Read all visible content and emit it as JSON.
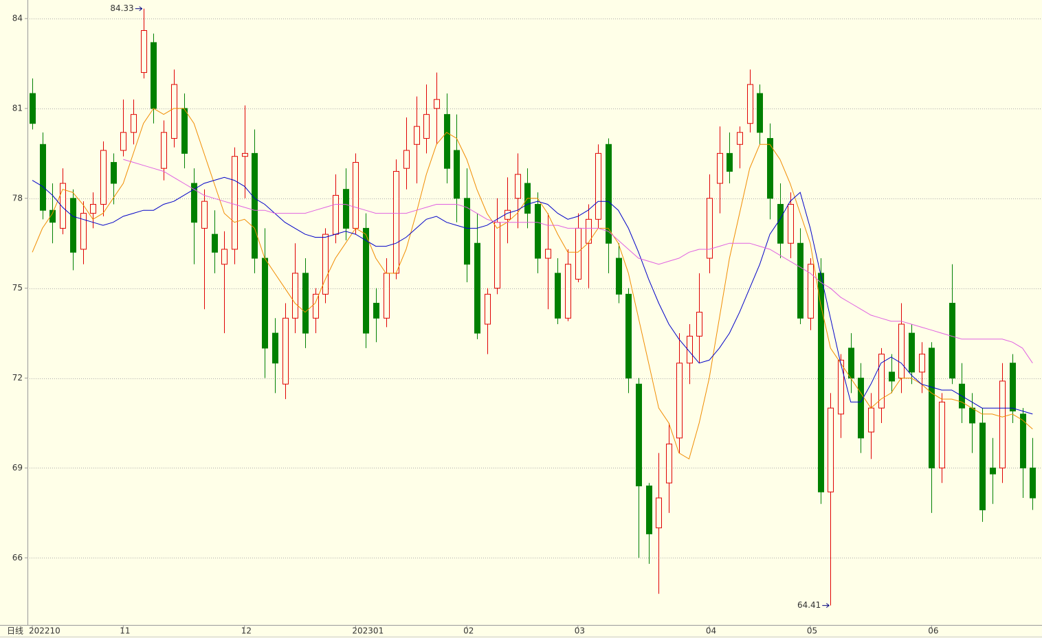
{
  "chart_data": {
    "type": "candlestick",
    "period_label": "日线",
    "categories": [
      "202210",
      null,
      null,
      null,
      null,
      null,
      null,
      null,
      null,
      "11",
      null,
      null,
      null,
      null,
      null,
      null,
      null,
      null,
      null,
      null,
      null,
      "12",
      null,
      null,
      null,
      null,
      null,
      null,
      null,
      null,
      null,
      null,
      "202301",
      null,
      null,
      null,
      null,
      null,
      null,
      null,
      null,
      null,
      null,
      "02",
      null,
      null,
      null,
      null,
      null,
      null,
      null,
      null,
      null,
      null,
      "03",
      null,
      null,
      null,
      null,
      null,
      null,
      null,
      null,
      null,
      null,
      null,
      null,
      "04",
      null,
      null,
      null,
      null,
      null,
      null,
      null,
      null,
      null,
      "05",
      null,
      null,
      null,
      null,
      null,
      null,
      null,
      null,
      null,
      null,
      null,
      "06",
      null,
      null,
      null,
      null,
      null,
      null,
      null,
      null,
      null,
      null
    ],
    "ohlc": [
      [
        81.5,
        82,
        80.3,
        80.5
      ],
      [
        79.8,
        80.2,
        77.3,
        77.6
      ],
      [
        77.6,
        78.5,
        76.5,
        77.2
      ],
      [
        77,
        79,
        76.8,
        78.5
      ],
      [
        78,
        78.3,
        75.6,
        76.2
      ],
      [
        76.3,
        77.9,
        75.8,
        77.5
      ],
      [
        77.5,
        78.2,
        77,
        77.8
      ],
      [
        77.8,
        79.9,
        77.4,
        79.6
      ],
      [
        79.2,
        79.5,
        77.8,
        78.5
      ],
      [
        79.6,
        81.3,
        79.4,
        80.2
      ],
      [
        80.2,
        81.3,
        79.8,
        80.8
      ],
      [
        82.2,
        84.33,
        82,
        83.6
      ],
      [
        83.2,
        83.5,
        80.5,
        81
      ],
      [
        79,
        80.6,
        78.6,
        80.2
      ],
      [
        80,
        82.3,
        79.7,
        81.8
      ],
      [
        81,
        81.5,
        79,
        79.5
      ],
      [
        78.5,
        79,
        75.8,
        77.2
      ],
      [
        77,
        78.3,
        74.3,
        77.9
      ],
      [
        76.8,
        77.6,
        75.5,
        76.2
      ],
      [
        75.8,
        76.9,
        73.5,
        76.3
      ],
      [
        76.3,
        79.7,
        75.8,
        79.4
      ],
      [
        79.4,
        81.1,
        78,
        79.5
      ],
      [
        79.5,
        80.3,
        75.5,
        76
      ],
      [
        76,
        77,
        72,
        73
      ],
      [
        73.5,
        74,
        71.5,
        72.5
      ],
      [
        71.8,
        74.5,
        71.3,
        74
      ],
      [
        74,
        76.5,
        73.5,
        75.5
      ],
      [
        75.5,
        76,
        73,
        73.5
      ],
      [
        74,
        75,
        73.5,
        74.8
      ],
      [
        74.8,
        77,
        74.5,
        76.8
      ],
      [
        76.8,
        78.8,
        76.5,
        78.1
      ],
      [
        78.3,
        79,
        76.6,
        77
      ],
      [
        77,
        79.5,
        76.8,
        79.2
      ],
      [
        77,
        77.5,
        73,
        73.5
      ],
      [
        74.5,
        75,
        73.2,
        74
      ],
      [
        74,
        76,
        73.7,
        75.5
      ],
      [
        75.5,
        79.3,
        75.3,
        78.9
      ],
      [
        79,
        80.7,
        78.3,
        79.6
      ],
      [
        79.8,
        81.4,
        78.5,
        80.4
      ],
      [
        80,
        81.8,
        79.5,
        80.8
      ],
      [
        81,
        82.2,
        79.8,
        81.3
      ],
      [
        80.8,
        81.5,
        78.5,
        79
      ],
      [
        79.6,
        80.8,
        77.2,
        78
      ],
      [
        78,
        79,
        75.2,
        75.8
      ],
      [
        76.5,
        77.5,
        73.3,
        73.5
      ],
      [
        73.8,
        75,
        72.8,
        74.8
      ],
      [
        75,
        78,
        74.8,
        77.2
      ],
      [
        77.3,
        78.7,
        76.5,
        77.6
      ],
      [
        78,
        79.5,
        77,
        78.8
      ],
      [
        78.5,
        79,
        77,
        77.5
      ],
      [
        77.8,
        78.2,
        75.5,
        76
      ],
      [
        76,
        77.5,
        74.3,
        76.3
      ],
      [
        75.5,
        76,
        73.8,
        74
      ],
      [
        74,
        76.3,
        73.9,
        75.8
      ],
      [
        75.3,
        77.5,
        75.2,
        77
      ],
      [
        76.5,
        77.8,
        75,
        77.3
      ],
      [
        77.3,
        79.8,
        77,
        79.5
      ],
      [
        79.8,
        80,
        75.5,
        76.5
      ],
      [
        76,
        76.5,
        74.5,
        74.8
      ],
      [
        74.8,
        75,
        71.5,
        72
      ],
      [
        71.8,
        72,
        66,
        68.4
      ],
      [
        68.4,
        68.5,
        65.8,
        66.8
      ],
      [
        67,
        69.5,
        64.8,
        68
      ],
      [
        68.5,
        70.5,
        67.5,
        69.8
      ],
      [
        70,
        73.5,
        69.5,
        72.5
      ],
      [
        72.5,
        73.8,
        71.8,
        73.4
      ],
      [
        73.4,
        75.5,
        72.5,
        74.2
      ],
      [
        76,
        78.8,
        75.5,
        78
      ],
      [
        78.5,
        80.4,
        77.5,
        79.5
      ],
      [
        79.5,
        80.2,
        78.5,
        78.9
      ],
      [
        79.8,
        80.4,
        79,
        80.2
      ],
      [
        80.5,
        82.3,
        80.2,
        81.8
      ],
      [
        81.5,
        81.8,
        79.8,
        80.2
      ],
      [
        80,
        80.5,
        77.3,
        78
      ],
      [
        77.8,
        78.5,
        76,
        76.5
      ],
      [
        76.5,
        78.2,
        76,
        77.8
      ],
      [
        76.5,
        77,
        73.8,
        74
      ],
      [
        74,
        76,
        73.6,
        75.8
      ],
      [
        75.5,
        76,
        67.8,
        68.2
      ],
      [
        68.2,
        71.5,
        64.41,
        71
      ],
      [
        70.8,
        72.8,
        70,
        72.6
      ],
      [
        73,
        73.5,
        71.5,
        72
      ],
      [
        72,
        72.5,
        69.5,
        70
      ],
      [
        70.2,
        71.5,
        69.3,
        71
      ],
      [
        71,
        73,
        70.5,
        72.8
      ],
      [
        72.2,
        72.8,
        71.5,
        71.9
      ],
      [
        72,
        74.5,
        71.5,
        73.8
      ],
      [
        73.5,
        73.8,
        71.8,
        72.2
      ],
      [
        72.2,
        73.2,
        71.5,
        72.8
      ],
      [
        73,
        73.2,
        67.5,
        69
      ],
      [
        69,
        71.5,
        68.5,
        71.2
      ],
      [
        74.5,
        75.8,
        71.8,
        72
      ],
      [
        71.8,
        72.5,
        70.5,
        71
      ],
      [
        71,
        71.5,
        69.5,
        70.5
      ],
      [
        70.5,
        71,
        67.2,
        67.6
      ],
      [
        69,
        70,
        67.8,
        68.8
      ],
      [
        69,
        72.5,
        68.5,
        71.9
      ],
      [
        72.5,
        72.8,
        70.5,
        70.9
      ],
      [
        70.8,
        71,
        68,
        69
      ],
      [
        69,
        70,
        67.6,
        68
      ]
    ],
    "up_color": "#e00000",
    "down_color": "#008000",
    "lines": [
      {
        "color": "#f08c00",
        "values": [
          76.2,
          77,
          77.5,
          78.3,
          78.2,
          77.8,
          77.3,
          77.5,
          78,
          78.5,
          79.5,
          80.5,
          81,
          80.8,
          81,
          81,
          80.5,
          79.5,
          78.5,
          77.5,
          77.2,
          77.3,
          77,
          76,
          75.5,
          75,
          74.5,
          74.2,
          74.5,
          75.3,
          76,
          76.5,
          77,
          76.8,
          76,
          75.5,
          75.5,
          76.3,
          77.5,
          78.8,
          79.8,
          80.2,
          80,
          79.3,
          78.3,
          77.5,
          77,
          77.2,
          77.5,
          78,
          78,
          77.5,
          76.8,
          76.2,
          76.2,
          76.5,
          77,
          77,
          76.5,
          75.5,
          74,
          72.5,
          71,
          70.5,
          69.5,
          69.3,
          70.5,
          72,
          74,
          76,
          77.5,
          79,
          79.8,
          79.8,
          79.3,
          78.5,
          77.5,
          76.5,
          74.5,
          73,
          72.5,
          72,
          71.5,
          71,
          71.3,
          71.5,
          72,
          72,
          71.8,
          71.5,
          71.3,
          71.3,
          71.2,
          71,
          70.8,
          70.8,
          70.7,
          70.8,
          70.6,
          70.3
        ]
      },
      {
        "color": "#0000c8",
        "values": [
          78.6,
          78.4,
          78.1,
          77.7,
          77.4,
          77.3,
          77.2,
          77.1,
          77.2,
          77.4,
          77.5,
          77.6,
          77.6,
          77.8,
          77.9,
          78.1,
          78.3,
          78.5,
          78.6,
          78.7,
          78.6,
          78.4,
          78,
          77.8,
          77.5,
          77.2,
          77,
          76.8,
          76.7,
          76.7,
          76.8,
          76.9,
          76.8,
          76.6,
          76.4,
          76.4,
          76.5,
          76.7,
          77,
          77.3,
          77.4,
          77.2,
          77.1,
          77,
          77,
          77.1,
          77.3,
          77.5,
          77.6,
          77.8,
          77.9,
          77.8,
          77.5,
          77.3,
          77.4,
          77.6,
          77.9,
          77.9,
          77.6,
          77,
          76.2,
          75.3,
          74.5,
          73.8,
          73.3,
          72.9,
          72.5,
          72.6,
          73,
          73.5,
          74.2,
          75,
          75.8,
          76.8,
          77.3,
          77.9,
          78.2,
          77,
          75.5,
          74,
          72.5,
          71.2,
          71.2,
          71.8,
          72.5,
          72.7,
          72.5,
          72.1,
          71.8,
          71.7,
          71.6,
          71.6,
          71.4,
          71.2,
          71,
          71,
          71,
          71,
          70.9,
          70.8
        ]
      },
      {
        "color": "#e060e0",
        "values": [
          null,
          null,
          null,
          null,
          null,
          null,
          null,
          null,
          null,
          79.3,
          79.2,
          79.1,
          79,
          78.9,
          78.7,
          78.5,
          78.3,
          78.1,
          78,
          77.9,
          77.8,
          77.7,
          77.6,
          77.6,
          77.5,
          77.5,
          77.5,
          77.5,
          77.6,
          77.7,
          77.8,
          77.8,
          77.7,
          77.6,
          77.5,
          77.5,
          77.5,
          77.5,
          77.6,
          77.7,
          77.8,
          77.8,
          77.8,
          77.7,
          77.5,
          77.3,
          77.2,
          77.2,
          77.2,
          77.2,
          77.2,
          77.1,
          77.1,
          77,
          77,
          77,
          77,
          76.9,
          76.6,
          76.3,
          76,
          75.9,
          75.8,
          75.9,
          76,
          76.2,
          76.3,
          76.3,
          76.4,
          76.5,
          76.5,
          76.5,
          76.4,
          76.3,
          76.1,
          75.9,
          75.7,
          75.5,
          75.2,
          75,
          74.7,
          74.5,
          74.3,
          74.1,
          74,
          73.9,
          73.9,
          73.8,
          73.7,
          73.6,
          73.5,
          73.4,
          73.3,
          73.3,
          73.3,
          73.3,
          73.3,
          73.2,
          73,
          72.5
        ]
      }
    ],
    "annotations": [
      {
        "label": "84.33",
        "value": 84.33
      },
      {
        "label": "64.41",
        "value": 64.41
      }
    ],
    "ylim": [
      63.76,
      84.62
    ],
    "yticks": [
      66,
      69,
      72,
      75,
      78,
      81,
      84
    ],
    "grid": true
  }
}
